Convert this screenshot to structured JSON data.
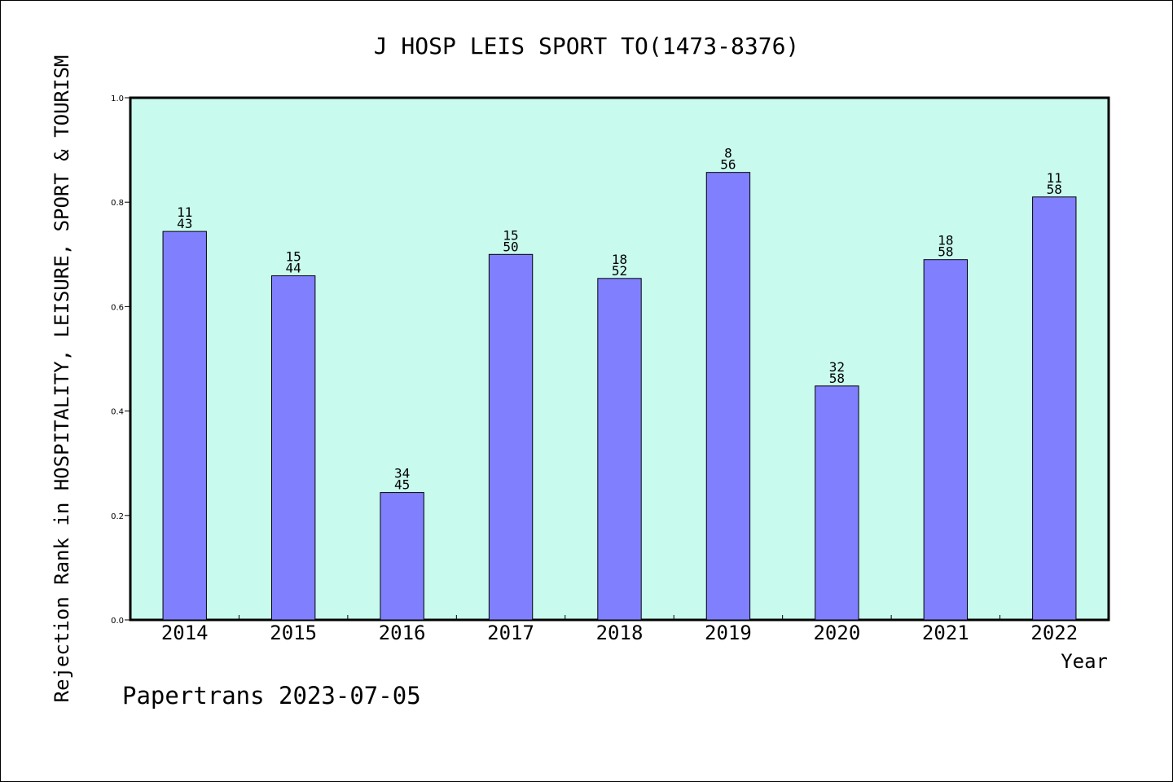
{
  "chart_data": {
    "type": "bar",
    "title": "J HOSP LEIS SPORT TO(1473-8376)",
    "xlabel": "Year",
    "ylabel": "Rejection Rank in HOSPITALITY, LEISURE, SPORT & TOURISM",
    "footer": "Papertrans 2023-07-05",
    "categories": [
      "2014",
      "2015",
      "2016",
      "2017",
      "2018",
      "2019",
      "2020",
      "2021",
      "2022"
    ],
    "values": [
      0.744,
      0.659,
      0.244,
      0.7,
      0.654,
      0.857,
      0.448,
      0.69,
      0.81
    ],
    "labels_top": [
      "11",
      "15",
      "34",
      "15",
      "18",
      "8",
      "32",
      "18",
      "11"
    ],
    "labels_bottom": [
      "43",
      "44",
      "45",
      "50",
      "52",
      "56",
      "58",
      "58",
      "58"
    ],
    "ylim": [
      0,
      1.0
    ],
    "yticks": [
      "0.0",
      "0.2",
      "0.4",
      "0.6",
      "0.8",
      "1.0"
    ],
    "ytick_values": [
      0,
      0.2,
      0.4,
      0.6,
      0.8,
      1.0
    ],
    "grid": false,
    "colors": {
      "plot_bg": "#c8fbee",
      "bar": "#8080ff",
      "axis": "#000000"
    }
  }
}
